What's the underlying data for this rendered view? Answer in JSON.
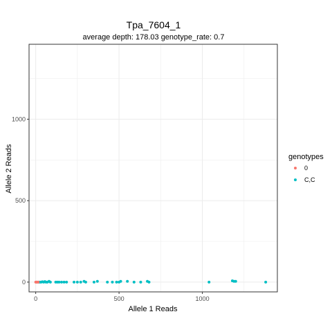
{
  "chart_data": {
    "type": "scatter",
    "title": "Tpa_7604_1",
    "subtitle": "average depth:  178.03  genotype_rate:  0.7",
    "xlabel": "Allele 1 Reads",
    "ylabel": "Allele 2 Reads",
    "xlim": [
      -40,
      1450
    ],
    "ylim": [
      -60,
      1460
    ],
    "x_ticks": [
      0,
      500,
      1000
    ],
    "y_ticks": [
      0,
      500,
      1000
    ],
    "grid": true,
    "legend": {
      "title": "genotypes",
      "position": "right"
    },
    "series": [
      {
        "name": "0",
        "color": "#F8766D",
        "x": [
          0,
          3,
          6,
          10,
          15
        ],
        "y": [
          0,
          0,
          0,
          0,
          0
        ]
      },
      {
        "name": "C,C",
        "color": "#00BFC4",
        "x": [
          18,
          25,
          32,
          40,
          48,
          55,
          62,
          70,
          80,
          88,
          120,
          130,
          140,
          155,
          170,
          185,
          230,
          250,
          270,
          290,
          300,
          350,
          370,
          430,
          460,
          485,
          500,
          510,
          550,
          590,
          630,
          670,
          680,
          1040,
          1180,
          1190,
          1200,
          1380
        ],
        "y": [
          0,
          0,
          0,
          2,
          0,
          3,
          0,
          0,
          5,
          0,
          0,
          0,
          0,
          0,
          0,
          0,
          0,
          0,
          0,
          5,
          0,
          0,
          5,
          0,
          0,
          0,
          0,
          5,
          5,
          0,
          0,
          5,
          0,
          0,
          8,
          5,
          5,
          0
        ]
      }
    ]
  }
}
